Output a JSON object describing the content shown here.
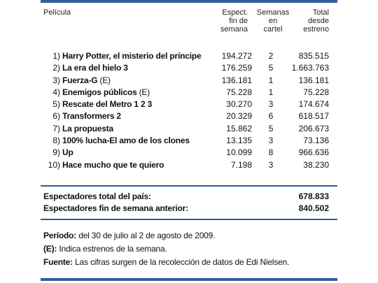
{
  "headers": {
    "film": "Película",
    "spect": [
      "Espect.",
      "fin de",
      "semana"
    ],
    "weeks": [
      "Semanas",
      "en",
      "cartel"
    ],
    "total": [
      "Total",
      "desde",
      "estreno"
    ]
  },
  "rows": [
    {
      "num": "1)",
      "title": "Harry Potter, el misterio del príncipe",
      "tag": "",
      "spect": "194.272",
      "weeks": "2",
      "total": "835.515"
    },
    {
      "num": "2)",
      "title": "La era del hielo 3",
      "tag": "",
      "spect": "176.259",
      "weeks": "5",
      "total": "1.663.763"
    },
    {
      "num": "3)",
      "title": "Fuerza-G",
      "tag": "(E)",
      "spect": "136.181",
      "weeks": "1",
      "total": "136.181"
    },
    {
      "num": "4)",
      "title": "Enemigos públicos",
      "tag": "(E)",
      "spect": "75.228",
      "weeks": "1",
      "total": "75.228"
    },
    {
      "num": "5)",
      "title": "Rescate del Metro 1 2 3",
      "tag": "",
      "spect": "30.270",
      "weeks": "3",
      "total": "174.674"
    },
    {
      "num": "6)",
      "title": "Transformers 2",
      "tag": "",
      "spect": "20.329",
      "weeks": "6",
      "total": "618.517"
    },
    {
      "num": "7)",
      "title": "La propuesta",
      "tag": "",
      "spect": "15.862",
      "weeks": "5",
      "total": "206.673"
    },
    {
      "num": "8)",
      "title": "100% lucha-El amo de los clones",
      "tag": "",
      "spect": "13.135",
      "weeks": "3",
      "total": "73.136"
    },
    {
      "num": "9)",
      "title": "Up",
      "tag": "",
      "spect": "10.099",
      "weeks": "8",
      "total": "966.636"
    },
    {
      "num": "10)",
      "title": "Hace mucho que te quiero",
      "tag": "",
      "spect": "7.198",
      "weeks": "3",
      "total": "38.230"
    }
  ],
  "summary": {
    "total_label": "Espectadores total del país:",
    "total_value": "678.833",
    "prev_label": "Espectadores fin de semana anterior:",
    "prev_value": "840.502"
  },
  "notes": {
    "period_label": "Período:",
    "period_text": "del 30 de julio al 2 de agosto de 2009.",
    "e_label": "(E):",
    "e_text": "Indica estrenos de la semana.",
    "source_label": "Fuente:",
    "source_text": "Las cifras surgen de la recolección de datos de Edi Nielsen."
  },
  "accent_color": "#2f5e99"
}
